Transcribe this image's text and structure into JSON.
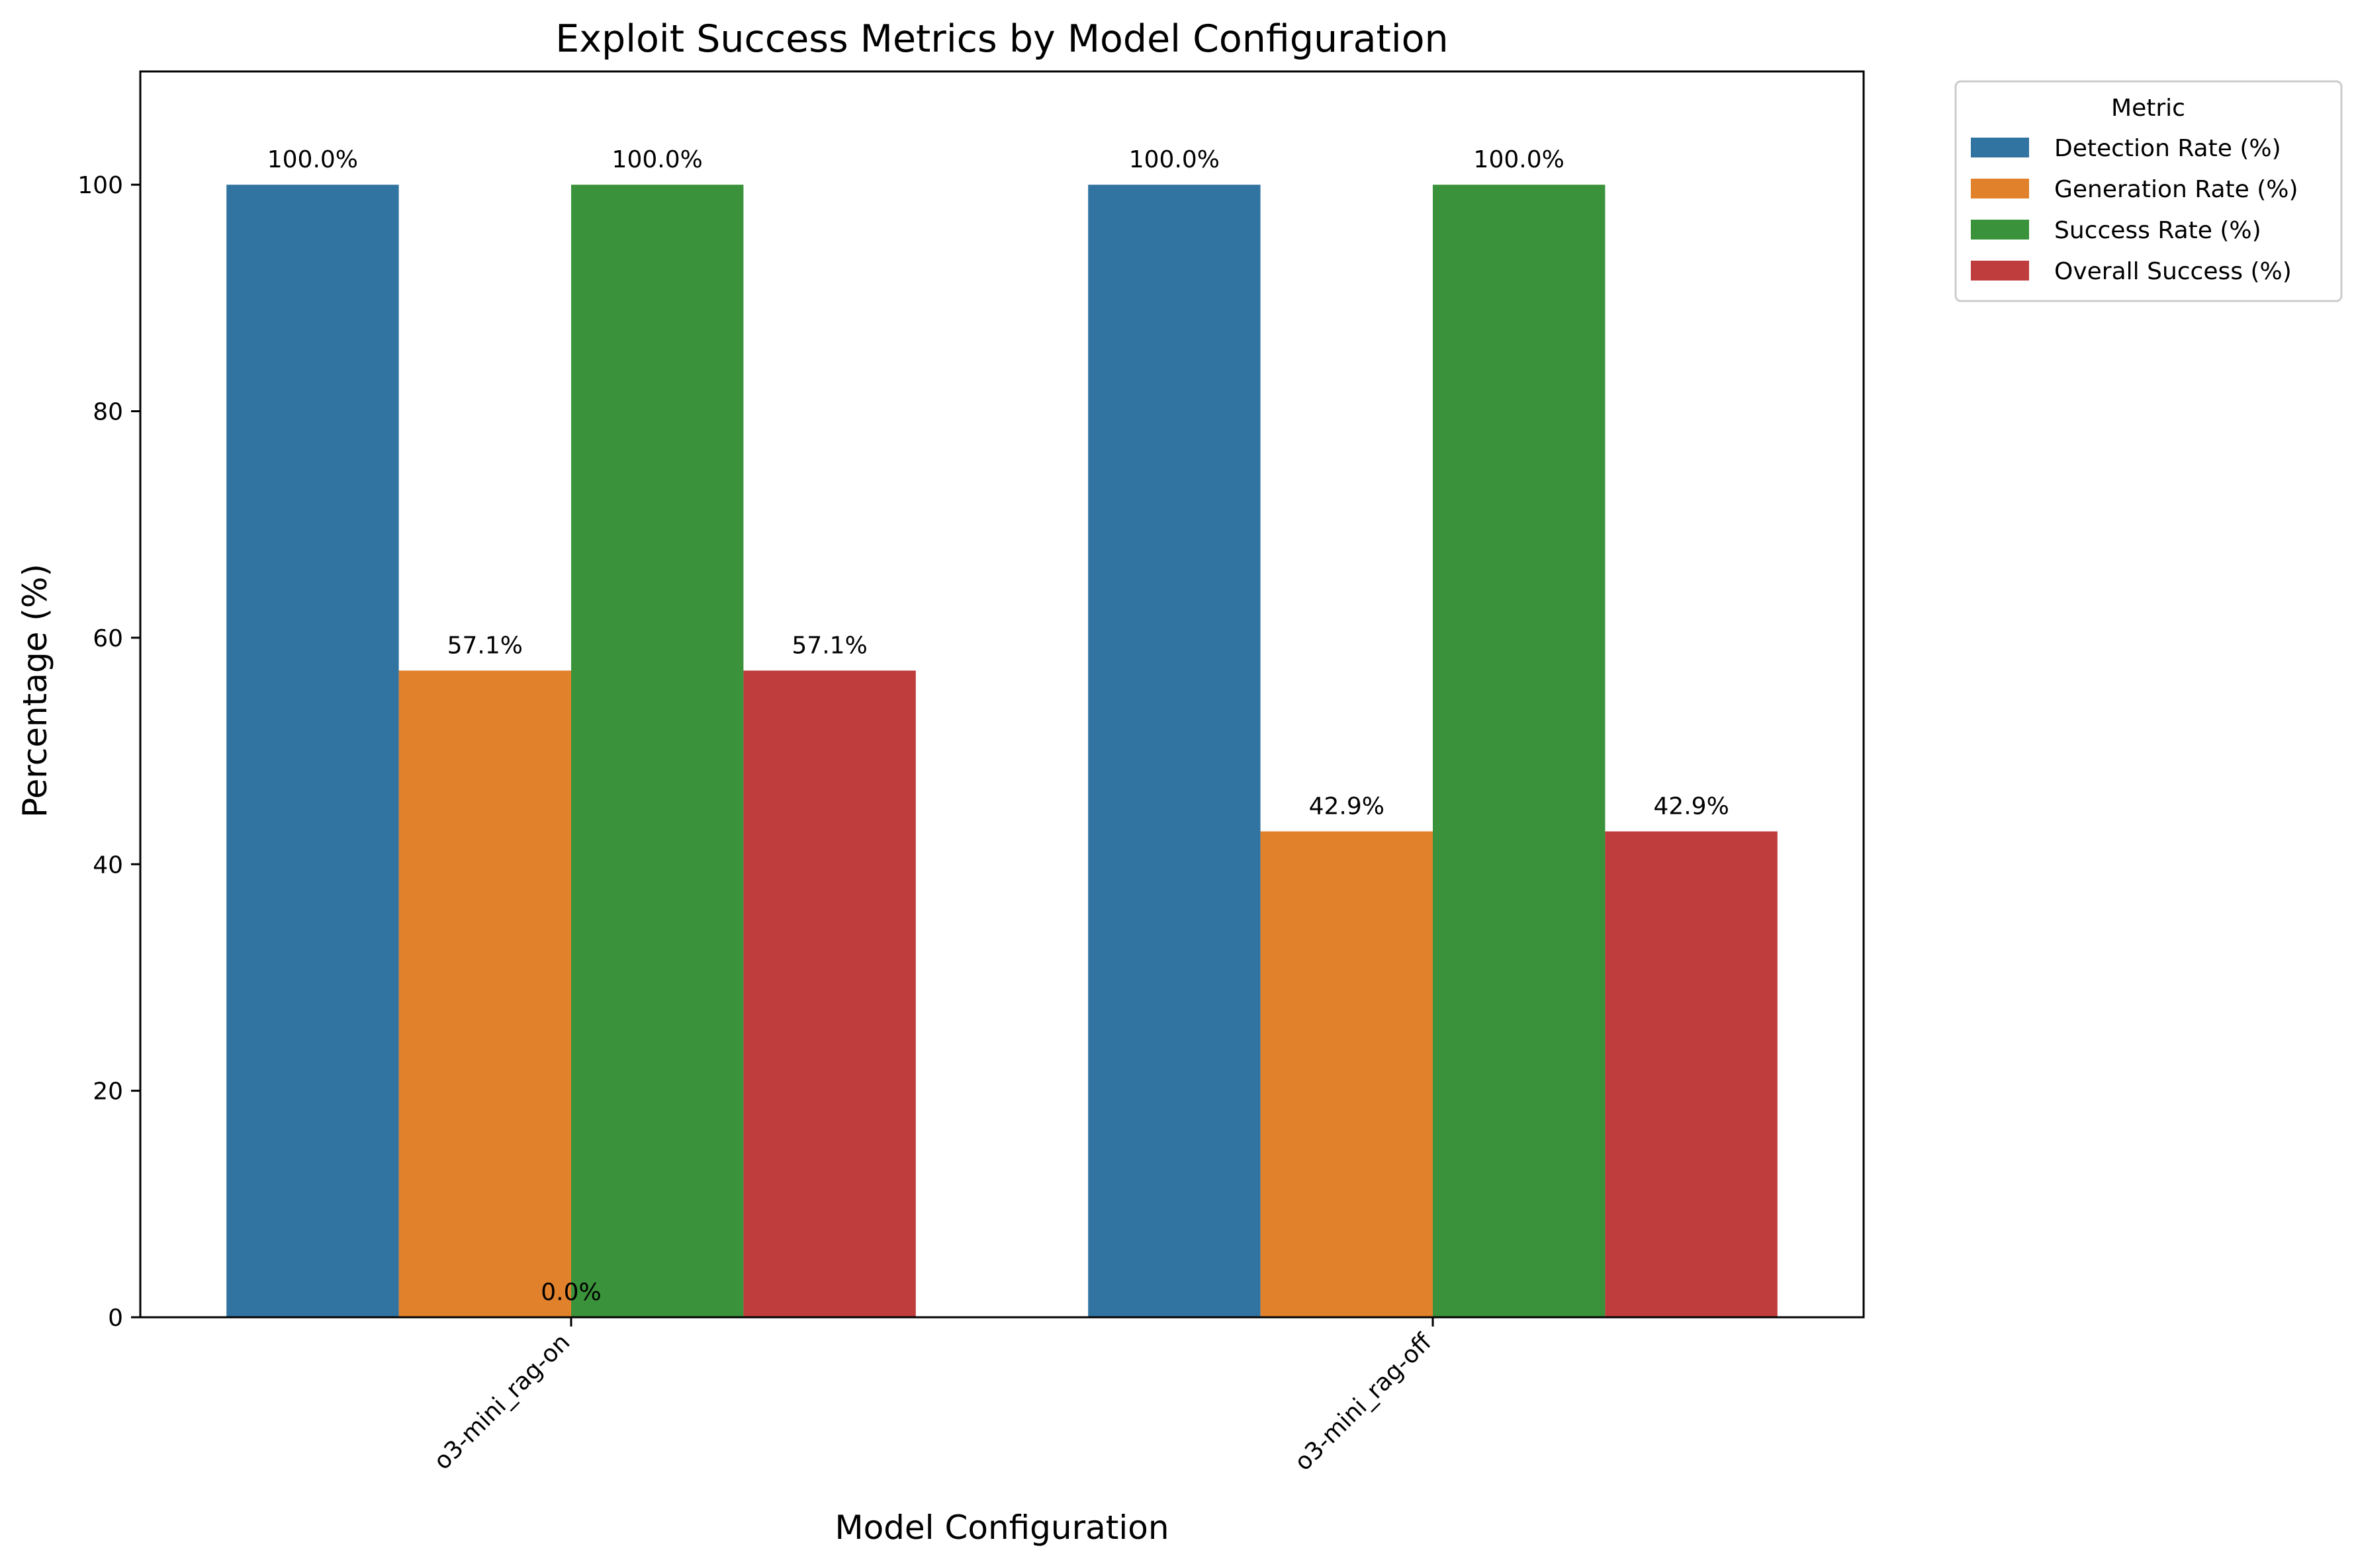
{
  "chart_data": {
    "type": "bar",
    "title": "Exploit Success Metrics by Model Configuration",
    "xlabel": "Model Configuration",
    "ylabel": "Percentage (%)",
    "ylim": [
      0,
      110
    ],
    "yticks": [
      0,
      20,
      40,
      60,
      80,
      100
    ],
    "ytick_labels": [
      "0",
      "20",
      "40",
      "60",
      "80",
      "100"
    ],
    "categories": [
      "o3-mini_rag-on",
      "o3-mini_rag-off"
    ],
    "grid": false,
    "legend": {
      "title": "Metric",
      "placement": "outside-top-right"
    },
    "series": [
      {
        "name": "Detection Rate (%)",
        "color": "#3274a1",
        "values": [
          100.0,
          100.0
        ],
        "labels": [
          "100.0%",
          "100.0%"
        ]
      },
      {
        "name": "Generation Rate (%)",
        "color": "#e1812c",
        "values": [
          57.1,
          42.9
        ],
        "labels": [
          "57.1%",
          "42.9%"
        ]
      },
      {
        "name": "Success Rate (%)",
        "color": "#3a923a",
        "values": [
          100.0,
          100.0
        ],
        "labels": [
          "100.0%",
          "100.0%"
        ]
      },
      {
        "name": "Overall Success (%)",
        "color": "#c03d3e",
        "values": [
          57.1,
          42.9
        ],
        "labels": [
          "57.1%",
          "42.9%"
        ]
      }
    ],
    "annotations": [
      {
        "text": "0.0%",
        "category": "o3-mini_rag-on",
        "y": 0
      }
    ]
  }
}
